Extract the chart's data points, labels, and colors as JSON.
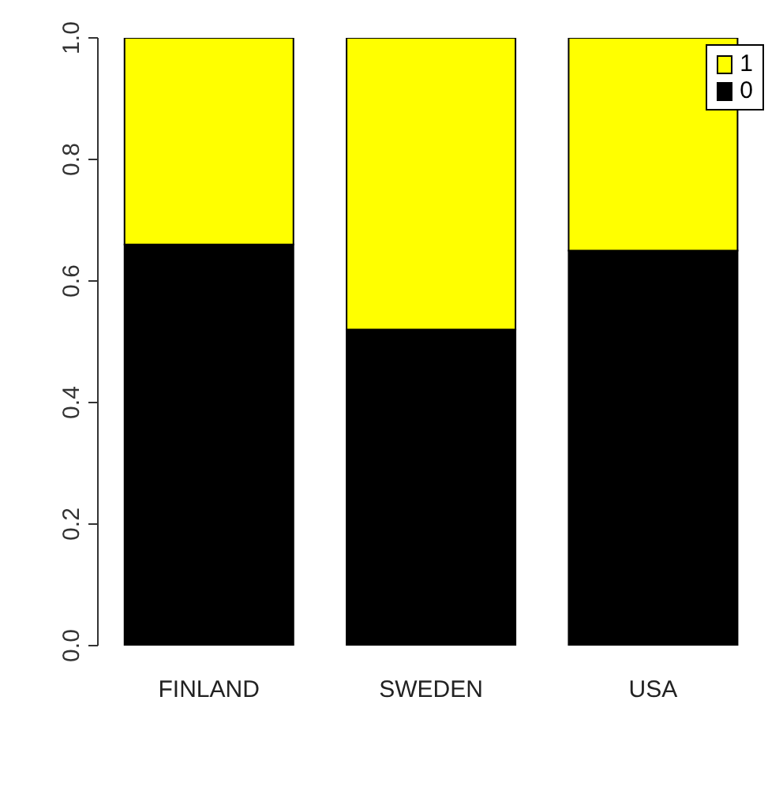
{
  "chart_data": {
    "type": "bar",
    "stacked": true,
    "categories": [
      "FINLAND",
      "SWEDEN",
      "USA"
    ],
    "series": [
      {
        "name": "0",
        "color": "#000000",
        "values": [
          0.66,
          0.52,
          0.65
        ]
      },
      {
        "name": "1",
        "color": "#ffff00",
        "values": [
          0.34,
          0.48,
          0.35
        ]
      }
    ],
    "ylim": [
      0,
      1
    ],
    "yticks": [
      {
        "value": 0,
        "label": "0.0"
      },
      {
        "value": 0.2,
        "label": "0.2"
      },
      {
        "value": 0.4,
        "label": "0.4"
      },
      {
        "value": 0.6,
        "label": "0.6"
      },
      {
        "value": 0.8,
        "label": "0.8"
      },
      {
        "value": 1,
        "label": "1.0"
      }
    ],
    "grid": false,
    "legend": "top right"
  }
}
